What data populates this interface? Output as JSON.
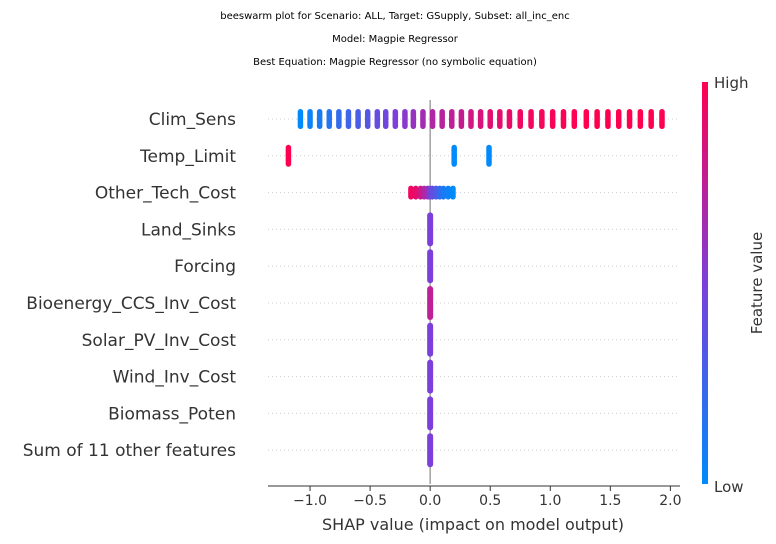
{
  "titles": [
    "beeswarm plot for Scenario: ALL, Target: GSupply, Subset: all_inc_enc",
    "Model: Magpie Regressor",
    "Best Equation: Magpie Regressor (no symbolic equation)"
  ],
  "colorbar": {
    "high_label": "High",
    "low_label": "Low",
    "title": "Feature value"
  },
  "colors": {
    "low": "#008afb",
    "mid": "#7c3fd9",
    "high": "#ff0051",
    "zero_line": "#999999",
    "grid": "#cccccc"
  },
  "chart_data": {
    "type": "scatter",
    "subtype": "beeswarm",
    "xlabel": "SHAP value (impact on model output)",
    "xlim": [
      -1.35,
      2.08
    ],
    "xticks": [
      -1.0,
      -0.5,
      0.0,
      0.5,
      1.0,
      1.5,
      2.0
    ],
    "xtick_labels": [
      "−1.0",
      "−0.5",
      "0.0",
      "0.5",
      "1.0",
      "1.5",
      "2.0"
    ],
    "features": [
      {
        "name": "Clim_Sens",
        "points": [
          [
            -1.08,
            0.0
          ],
          [
            -1.0,
            0.05
          ],
          [
            -0.92,
            0.1
          ],
          [
            -0.84,
            0.15
          ],
          [
            -0.76,
            0.2
          ],
          [
            -0.68,
            0.25
          ],
          [
            -0.6,
            0.3
          ],
          [
            -0.52,
            0.35
          ],
          [
            -0.44,
            0.4
          ],
          [
            -0.37,
            0.45
          ],
          [
            -0.29,
            0.5
          ],
          [
            -0.21,
            0.55
          ],
          [
            -0.14,
            0.6
          ],
          [
            -0.06,
            0.65
          ],
          [
            0.02,
            0.7
          ],
          [
            0.1,
            0.72
          ],
          [
            0.18,
            0.75
          ],
          [
            0.26,
            0.78
          ],
          [
            0.34,
            0.82
          ],
          [
            0.42,
            0.85
          ],
          [
            0.5,
            0.88
          ],
          [
            0.58,
            0.9
          ],
          [
            0.66,
            0.92
          ],
          [
            0.75,
            0.94
          ],
          [
            0.84,
            0.95
          ],
          [
            0.93,
            0.96
          ],
          [
            1.02,
            0.97
          ],
          [
            1.11,
            0.98
          ],
          [
            1.2,
            0.99
          ],
          [
            1.3,
            1.0
          ],
          [
            1.39,
            1.0
          ],
          [
            1.48,
            1.0
          ],
          [
            1.57,
            1.0
          ],
          [
            1.66,
            1.0
          ],
          [
            1.75,
            1.0
          ],
          [
            1.84,
            1.0
          ],
          [
            1.93,
            1.0
          ]
        ]
      },
      {
        "name": "Temp_Limit",
        "points": [
          [
            -1.18,
            1.0
          ],
          [
            0.2,
            0.0
          ],
          [
            0.49,
            0.0
          ]
        ]
      },
      {
        "name": "Other_Tech_Cost",
        "points": [
          [
            -0.16,
            0.95
          ],
          [
            -0.12,
            0.9
          ],
          [
            -0.08,
            0.8
          ],
          [
            -0.05,
            0.7
          ],
          [
            -0.02,
            0.6
          ],
          [
            0.0,
            0.5
          ],
          [
            0.02,
            0.4
          ],
          [
            0.05,
            0.3
          ],
          [
            0.08,
            0.2
          ],
          [
            0.11,
            0.1
          ],
          [
            0.15,
            0.05
          ],
          [
            0.19,
            0.0
          ]
        ]
      },
      {
        "name": "Land_Sinks",
        "points": [
          [
            0.0,
            0.5
          ]
        ]
      },
      {
        "name": "Forcing",
        "points": [
          [
            0.0,
            0.5
          ]
        ]
      },
      {
        "name": "Bioenergy_CCS_Inv_Cost",
        "points": [
          [
            0.0,
            0.75
          ]
        ]
      },
      {
        "name": "Solar_PV_Inv_Cost",
        "points": [
          [
            0.0,
            0.5
          ]
        ]
      },
      {
        "name": "Wind_Inv_Cost",
        "points": [
          [
            0.0,
            0.5
          ]
        ]
      },
      {
        "name": "Biomass_Poten",
        "points": [
          [
            0.0,
            0.5
          ]
        ]
      },
      {
        "name": "Sum of 11 other features",
        "points": [
          [
            0.0,
            0.5
          ]
        ]
      }
    ]
  }
}
